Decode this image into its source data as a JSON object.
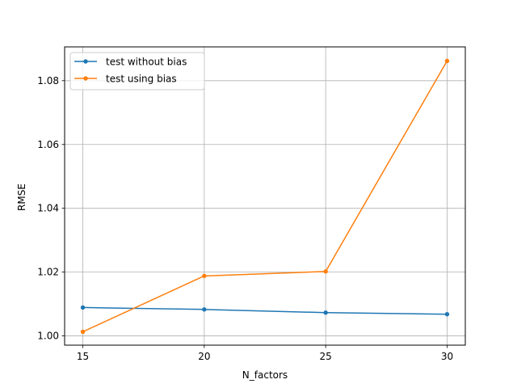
{
  "chart_data": {
    "type": "line",
    "xlabel": "N_factors",
    "ylabel": "RMSE",
    "x": [
      15,
      20,
      25,
      30
    ],
    "xlim": [
      14.25,
      30.75
    ],
    "ylim": [
      0.9971,
      1.0906
    ],
    "xticks": [
      "15",
      "20",
      "25",
      "30"
    ],
    "yticks": [
      "1.00",
      "1.02",
      "1.04",
      "1.06",
      "1.08"
    ],
    "grid": true,
    "legend_position": "top-left",
    "series": [
      {
        "name": "test without bias",
        "color": "#1f77b4",
        "marker": "circle",
        "values": [
          1.0089,
          1.0083,
          1.0073,
          1.0068
        ]
      },
      {
        "name": "test using bias",
        "color": "#ff7f0e",
        "marker": "circle",
        "values": [
          1.0013,
          1.0188,
          1.0202,
          1.0862
        ]
      }
    ]
  }
}
